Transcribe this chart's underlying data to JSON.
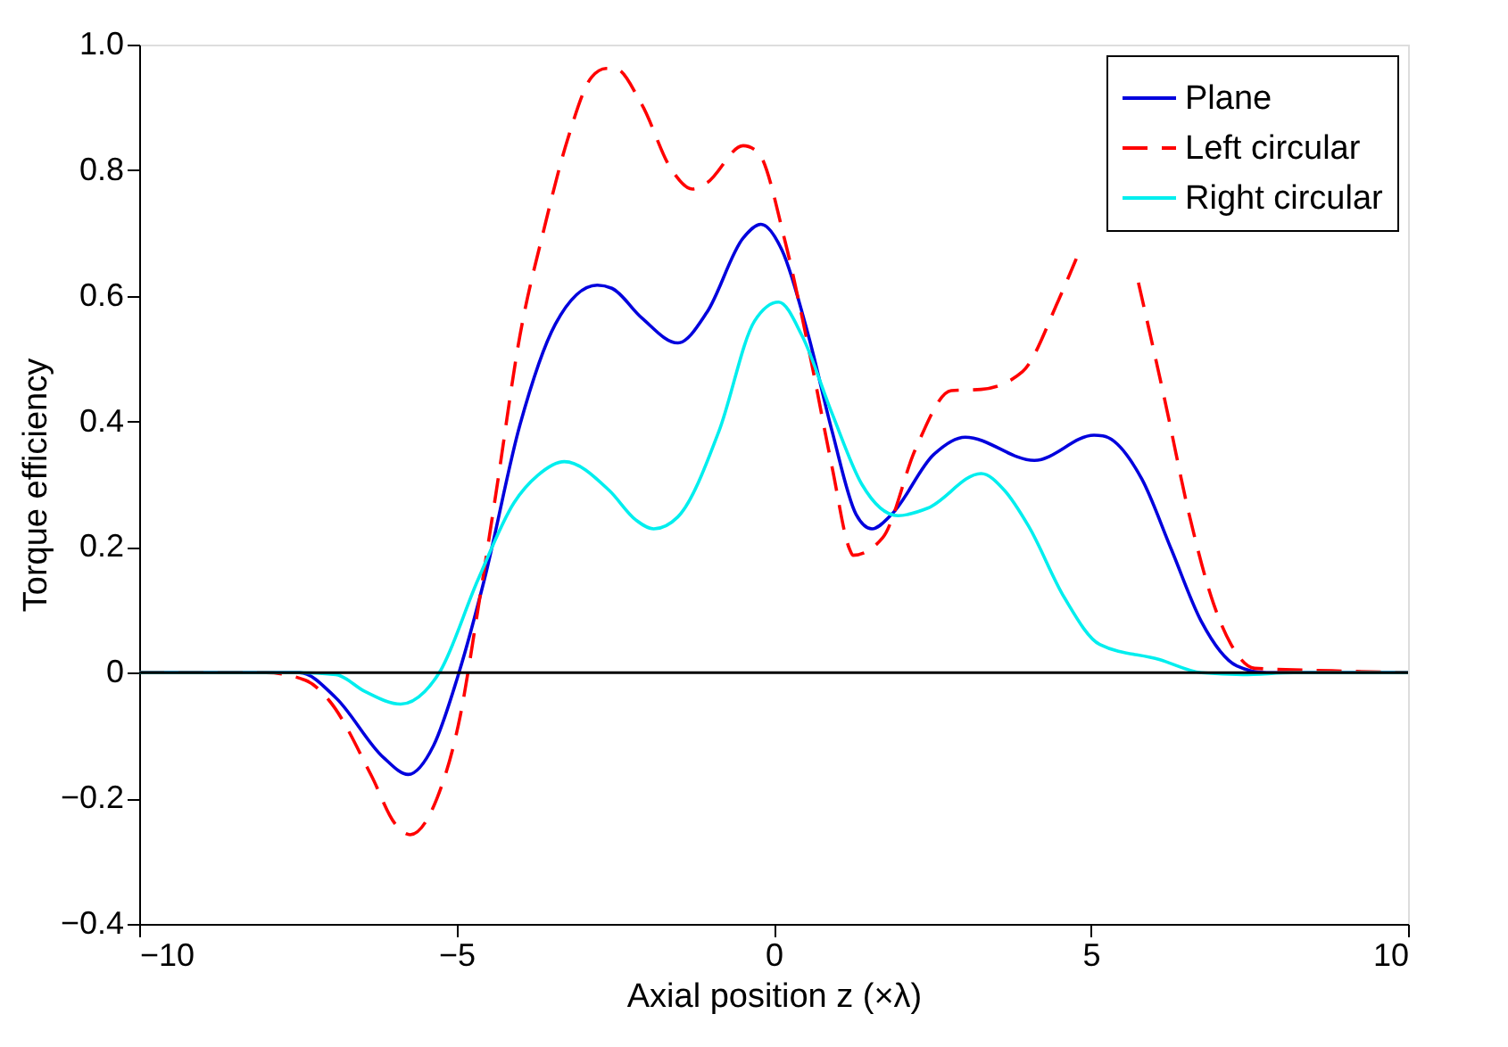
{
  "chart_data": {
    "type": "line",
    "xlabel": "Axial position  z (×λ)",
    "ylabel": "Torque efficiency",
    "xlim": [
      -10,
      10
    ],
    "xticks": [
      -10,
      -5,
      0,
      5,
      10
    ],
    "ylim": [
      -0.4,
      1.0
    ],
    "yticks": [
      -0.4,
      -0.2,
      0,
      0.2,
      0.4,
      0.6,
      0.8,
      {
        "value": 1.0,
        "label": "1.0"
      }
    ],
    "grid": false,
    "legend": "top right",
    "marker": "none",
    "ref_lines": [
      {
        "axis": "y",
        "value": 0,
        "color": "#000000"
      }
    ],
    "series": [
      {
        "name": "Plane",
        "color": "#0000dd",
        "line_style": "solid",
        "x": [
          -10,
          -7.47,
          -6.9,
          -6.15,
          -5.76,
          -5.36,
          -4.96,
          -4.56,
          -4.0,
          -3.44,
          -2.78,
          -2.55,
          -2.08,
          -1.51,
          -1.05,
          -0.48,
          -0.2,
          0.13,
          0.55,
          0.92,
          1.3,
          1.55,
          1.86,
          2.52,
          3.02,
          4.11,
          5.05,
          5.19,
          5.8,
          6.27,
          6.74,
          7.3,
          7.77,
          10
        ],
        "values": [
          0,
          0,
          -0.04,
          -0.135,
          -0.162,
          -0.116,
          0,
          0.148,
          0.394,
          0.555,
          0.617,
          0.612,
          0.565,
          0.525,
          0.574,
          0.692,
          0.714,
          0.673,
          0.536,
          0.385,
          0.252,
          0.229,
          0.252,
          0.347,
          0.375,
          0.338,
          0.378,
          0.377,
          0.309,
          0.196,
          0.082,
          0.011,
          0,
          0
        ]
      },
      {
        "name": "Left circular",
        "color": "#ff0000",
        "line_style": "dashed",
        "x": [
          -10,
          -8.0,
          -7.38,
          -7.0,
          -6.34,
          -5.97,
          -5.73,
          -5.31,
          -4.94,
          -4.66,
          -4.37,
          -4.0,
          -3.62,
          -3.25,
          -2.87,
          -2.64,
          -2.5,
          -2.08,
          -1.61,
          -1.28,
          -1.05,
          -0.48,
          -0.25,
          0.18,
          0.55,
          0.92,
          1.2,
          1.25,
          1.72,
          2.24,
          2.8,
          3.27,
          3.92,
          4.49,
          4.77,
          5.25,
          5.75,
          6.17,
          6.55,
          6.93,
          7.21,
          7.58,
          8.8,
          10
        ],
        "values": [
          0,
          0,
          -0.012,
          -0.045,
          -0.164,
          -0.24,
          -0.258,
          -0.201,
          -0.069,
          0.101,
          0.29,
          0.536,
          0.706,
          0.848,
          0.948,
          0.962,
          0.962,
          0.905,
          0.801,
          0.77,
          0.78,
          0.839,
          0.829,
          0.687,
          0.517,
          0.328,
          0.196,
          0.187,
          0.215,
          0.357,
          0.449,
          0.451,
          0.479,
          0.593,
          0.659,
          null,
          0.621,
          0.432,
          0.252,
          0.111,
          0.045,
          0.007,
          0.003,
          0
        ]
      },
      {
        "name": "Right circular",
        "color": "#00eeee",
        "line_style": "solid",
        "x": [
          -10,
          -7.5,
          -6.9,
          -6.44,
          -5.88,
          -5.5,
          -5.27,
          -4.66,
          -4.09,
          -3.72,
          -3.3,
          -2.59,
          -2.17,
          -1.89,
          -1.51,
          -0.86,
          -0.3,
          0.08,
          0.45,
          0.92,
          1.39,
          1.96,
          2.43,
          3.27,
          3.64,
          4.02,
          4.58,
          5.14,
          6.08,
          6.74,
          7.4,
          8.2,
          10
        ],
        "values": [
          0,
          0,
          -0.003,
          -0.03,
          -0.05,
          -0.03,
          0,
          0.148,
          0.271,
          0.314,
          0.336,
          0.29,
          0.243,
          0.229,
          0.248,
          0.385,
          0.56,
          0.59,
          0.536,
          0.413,
          0.3,
          0.25,
          0.262,
          0.317,
          0.29,
          0.233,
          0.12,
          0.045,
          0.021,
          0,
          -0.003,
          0,
          0
        ]
      }
    ]
  }
}
